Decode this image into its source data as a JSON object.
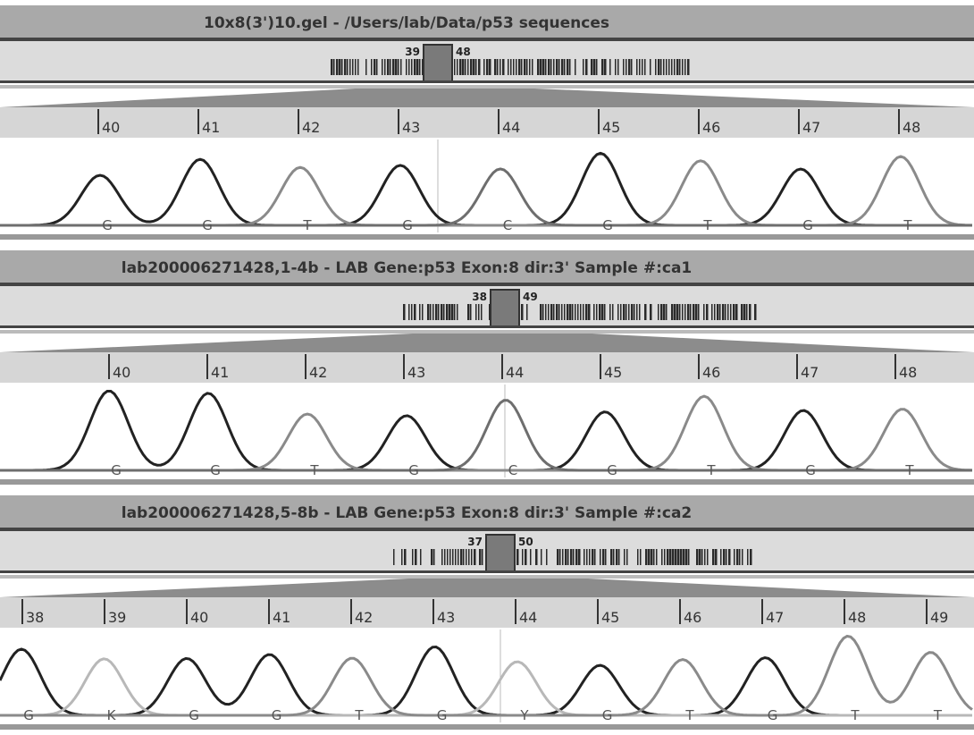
{
  "panels": [
    {
      "title": "10x8(3')10.gel - /Users/lab/Data/p53 sequences",
      "window_start": "39",
      "window_end": "48",
      "ruler": [
        40,
        41,
        42,
        43,
        44,
        45,
        46,
        47,
        48
      ],
      "bases": [
        "G",
        "G",
        "T",
        "G",
        "C",
        "G",
        "T",
        "G",
        "T"
      ]
    },
    {
      "title": "lab200006271428,1-4b - LAB  Gene:p53  Exon:8  dir:3'  Sample #:ca1",
      "window_start": "38",
      "window_end": "49",
      "ruler": [
        40,
        41,
        42,
        43,
        44,
        45,
        46,
        47,
        48
      ],
      "bases": [
        "G",
        "G",
        "T",
        "G",
        "C",
        "G",
        "T",
        "G",
        "T"
      ]
    },
    {
      "title": "lab200006271428,5-8b - LAB  Gene:p53  Exon:8  dir:3'  Sample #:ca2",
      "window_start": "37",
      "window_end": "50",
      "ruler": [
        38,
        39,
        40,
        41,
        42,
        43,
        44,
        45,
        46,
        47,
        48,
        49
      ],
      "bases": [
        "G",
        "K",
        "G",
        "G",
        "T",
        "G",
        "Y",
        "G",
        "T",
        "G",
        "T",
        "T"
      ]
    }
  ]
}
